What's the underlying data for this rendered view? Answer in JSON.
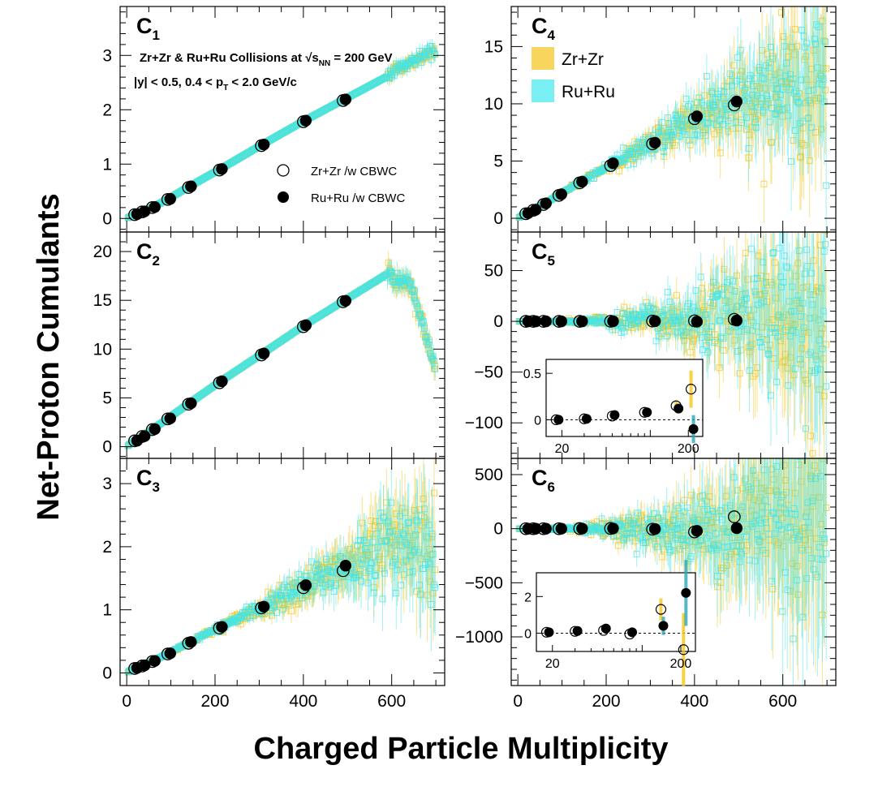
{
  "figure": {
    "xlabel": "Charged Particle Multiplicity",
    "ylabel": "Net-Proton Cumulants",
    "annotation_line1": "Zr+Zr & Ru+Ru Collisions at √s",
    "annotation_line1_sub": "NN",
    "annotation_line1_end": " = 200 GeV",
    "annotation_line2": "|y| < 0.5, 0.4 < p",
    "annotation_line2_sub": "T",
    "annotation_line2_end": " < 2.0 GeV/c",
    "legend_markers": [
      {
        "label": "Zr+Zr /w CBWC",
        "style": "open-circle"
      },
      {
        "label": "Ru+Ru /w CBWC",
        "style": "filled-circle"
      }
    ],
    "legend_bands": [
      {
        "label": "Zr+Zr",
        "color": "#f5c518"
      },
      {
        "label": "Ru+Ru",
        "color": "#40e8f0"
      }
    ],
    "colors": {
      "zrzr": "#f5c518",
      "ruru": "#3ee6ee",
      "marker": "#000000"
    }
  },
  "chart_data": [
    {
      "id": "C1",
      "label": "C",
      "label_sub": "1",
      "type": "scatter",
      "xlim": [
        -15,
        720
      ],
      "ylim": [
        -0.25,
        3.9
      ],
      "xticks": [
        0,
        200,
        400,
        600
      ],
      "yticks": [
        0,
        1,
        2,
        3
      ],
      "x": [
        18,
        35,
        58,
        93,
        140,
        210,
        305,
        400,
        490
      ],
      "zrzr_cbwc": [
        0.07,
        0.12,
        0.2,
        0.35,
        0.57,
        0.89,
        1.34,
        1.78,
        2.17
      ],
      "ruru_cbwc": [
        0.08,
        0.13,
        0.21,
        0.36,
        0.59,
        0.91,
        1.36,
        1.8,
        2.19
      ],
      "band_scatter_scale": 0.06,
      "band_errbar_scale": 0.09
    },
    {
      "id": "C2",
      "label": "C",
      "label_sub": "2",
      "type": "scatter",
      "xlim": [
        -15,
        720
      ],
      "ylim": [
        -1.2,
        22
      ],
      "xticks": [
        0,
        200,
        400,
        600
      ],
      "yticks": [
        0,
        5,
        10,
        15,
        20
      ],
      "x": [
        18,
        35,
        58,
        93,
        140,
        210,
        305,
        400,
        490
      ],
      "zrzr_cbwc": [
        0.6,
        1.05,
        1.75,
        2.85,
        4.35,
        6.55,
        9.4,
        12.3,
        14.85
      ],
      "ruru_cbwc": [
        0.62,
        1.08,
        1.8,
        2.9,
        4.45,
        6.7,
        9.55,
        12.45,
        14.95
      ],
      "band_scatter_scale": 0.5,
      "band_errbar_scale": 0.8
    },
    {
      "id": "C3",
      "label": "C",
      "label_sub": "3",
      "type": "scatter",
      "xlim": [
        -15,
        720
      ],
      "ylim": [
        -0.2,
        3.4
      ],
      "xticks": [
        0,
        200,
        400,
        600
      ],
      "yticks": [
        0,
        1,
        2,
        3
      ],
      "x": [
        18,
        35,
        58,
        93,
        140,
        210,
        305,
        400,
        490
      ],
      "zrzr_cbwc": [
        0.07,
        0.11,
        0.18,
        0.3,
        0.47,
        0.71,
        1.03,
        1.35,
        1.62
      ],
      "ruru_cbwc": [
        0.08,
        0.12,
        0.19,
        0.31,
        0.49,
        0.73,
        1.05,
        1.39,
        1.7
      ],
      "band_scatter_scale": 0.32,
      "band_errbar_scale": 0.55
    },
    {
      "id": "C4",
      "label": "C",
      "label_sub": "4",
      "type": "scatter",
      "xlim": [
        -15,
        720
      ],
      "ylim": [
        -1.2,
        18.5
      ],
      "xticks": [
        0,
        200,
        400,
        600
      ],
      "yticks": [
        0,
        5,
        10,
        15
      ],
      "x": [
        18,
        35,
        58,
        93,
        140,
        210,
        305,
        400,
        490
      ],
      "zrzr_cbwc": [
        0.4,
        0.7,
        1.2,
        2.0,
        3.1,
        4.6,
        6.5,
        8.7,
        9.9
      ],
      "ruru_cbwc": [
        0.45,
        0.75,
        1.3,
        2.1,
        3.2,
        4.8,
        6.6,
        8.9,
        10.2
      ],
      "band_scatter_scale": 2.5,
      "band_errbar_scale": 4.0
    },
    {
      "id": "C5",
      "label": "C",
      "label_sub": "5",
      "type": "scatter",
      "xlim": [
        -15,
        720
      ],
      "ylim": [
        -135,
        88
      ],
      "xticks": [
        0,
        200,
        400,
        600
      ],
      "yticks": [
        -100,
        -50,
        0,
        50
      ],
      "x": [
        18,
        35,
        58,
        93,
        140,
        210,
        305,
        400,
        490
      ],
      "zrzr_cbwc": [
        0.0,
        0.0,
        0.0,
        0.0,
        0.0,
        0.1,
        0.3,
        0.5,
        2.0
      ],
      "ruru_cbwc": [
        0.0,
        0.0,
        0.0,
        0.0,
        0.0,
        0.1,
        0.2,
        -0.3,
        0.8
      ],
      "band_scatter_scale": 35,
      "band_errbar_scale": 55,
      "inset": {
        "x": [
          18,
          30,
          50,
          90,
          160,
          210
        ],
        "zrzr": [
          0.0,
          0.01,
          0.04,
          0.08,
          0.15,
          0.33
        ],
        "ruru": [
          0.0,
          0.01,
          0.05,
          0.08,
          0.12,
          -0.1
        ],
        "zrzr_err": [
          0.01,
          0.01,
          0.02,
          0.03,
          0.06,
          0.2
        ],
        "ruru_err": [
          0.01,
          0.01,
          0.02,
          0.03,
          0.05,
          0.15
        ],
        "xlim_log": [
          15,
          260
        ],
        "ylim": [
          -0.18,
          0.65
        ],
        "xtick_labels": [
          20,
          200
        ],
        "yticks": [
          0,
          0.5
        ]
      }
    },
    {
      "id": "C6",
      "label": "C",
      "label_sub": "6",
      "type": "scatter",
      "xlim": [
        -15,
        720
      ],
      "ylim": [
        -1450,
        650
      ],
      "xticks": [
        0,
        200,
        400,
        600
      ],
      "yticks": [
        -1000,
        -500,
        0,
        500
      ],
      "x": [
        18,
        35,
        58,
        93,
        140,
        210,
        305,
        400,
        490
      ],
      "zrzr_cbwc": [
        0.0,
        0.0,
        0.0,
        0.0,
        1.0,
        2.0,
        -5.0,
        -30.0,
        110.0
      ],
      "ruru_cbwc": [
        0.0,
        0.0,
        0.0,
        0.0,
        1.0,
        2.0,
        -3.0,
        -20.0,
        5.0
      ],
      "band_scatter_scale": 400,
      "band_errbar_scale": 700,
      "inset": {
        "x": [
          18,
          30,
          50,
          80,
          140,
          210
        ],
        "zrzr": [
          0.05,
          0.1,
          0.15,
          -0.05,
          1.3,
          -0.9
        ],
        "ruru": [
          0.05,
          0.12,
          0.25,
          0.05,
          0.4,
          2.2
        ],
        "zrzr_err": [
          0.05,
          0.05,
          0.08,
          0.1,
          0.6,
          2.0
        ],
        "ruru_err": [
          0.05,
          0.05,
          0.08,
          0.1,
          0.5,
          1.8
        ],
        "xlim_log": [
          15,
          260
        ],
        "ylim": [
          -1.0,
          3.3
        ],
        "xtick_labels": [
          20,
          200
        ],
        "yticks": [
          0,
          2
        ]
      }
    }
  ]
}
